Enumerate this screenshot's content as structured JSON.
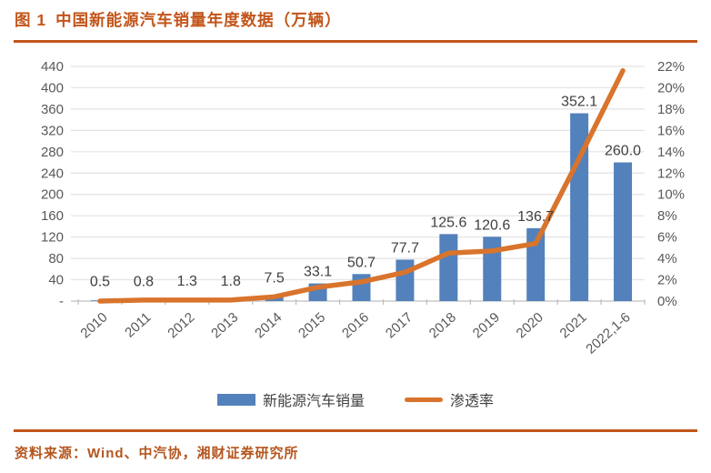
{
  "title": {
    "figure_label": "图 1",
    "caption": "中国新能源汽车销量年度数据（万辆）"
  },
  "legend": {
    "items": [
      {
        "label": "新能源汽车销量",
        "swatch": "bar-swatch",
        "color": "#5381BB"
      },
      {
        "label": "渗透率",
        "swatch": "line-swatch",
        "color": "#D9742D"
      }
    ]
  },
  "source": {
    "label": "资料来源：",
    "text": "Wind、中汽协，湘财证券研究所"
  },
  "colors": {
    "accent": "#C2551A",
    "bar": "#5381BB",
    "line": "#D9742D",
    "axis_text": "#595959",
    "data_label": "#3F3F3F",
    "gridline": "#E3E3E3",
    "baseline": "#BFBFBF",
    "source_text": "#B4561E"
  },
  "chart_data": {
    "type": "bar",
    "title": "中国新能源汽车销量年度数据（万辆）",
    "categories": [
      "2010",
      "2011",
      "2012",
      "2013",
      "2014",
      "2015",
      "2016",
      "2017",
      "2018",
      "2019",
      "2020",
      "2021",
      "2022,1-6"
    ],
    "series": [
      {
        "name": "新能源汽车销量",
        "type": "bar",
        "axis": "left",
        "values": [
          0.5,
          0.8,
          1.3,
          1.8,
          7.5,
          33.1,
          50.7,
          77.7,
          125.6,
          120.6,
          136.7,
          352.1,
          260.0
        ],
        "data_labels": [
          "0.5",
          "0.8",
          "1.3",
          "1.8",
          "7.5",
          "33.1",
          "50.7",
          "77.7",
          "125.6",
          "120.6",
          "136.7",
          "352.1",
          "260.0"
        ]
      },
      {
        "name": "渗透率",
        "type": "line",
        "axis": "right",
        "estimated": true,
        "values": [
          0.0,
          0.1,
          0.1,
          0.1,
          0.4,
          1.3,
          1.8,
          2.7,
          4.5,
          4.7,
          5.4,
          13.4,
          21.6
        ]
      }
    ],
    "left_axis": {
      "min": 0,
      "max": 440,
      "step": 40,
      "tick_labels_top_to_bottom": [
        "440",
        "400",
        "360",
        "320",
        "280",
        "240",
        "200",
        "160",
        "120",
        "80",
        "40",
        "-"
      ]
    },
    "right_axis": {
      "min": 0,
      "max": 22,
      "step": 2,
      "unit": "%",
      "tick_labels_top_to_bottom": [
        "22%",
        "20%",
        "18%",
        "16%",
        "14%",
        "12%",
        "10%",
        "8%",
        "6%",
        "4%",
        "2%",
        "0%"
      ]
    },
    "grid": true,
    "legend_position": "bottom"
  }
}
